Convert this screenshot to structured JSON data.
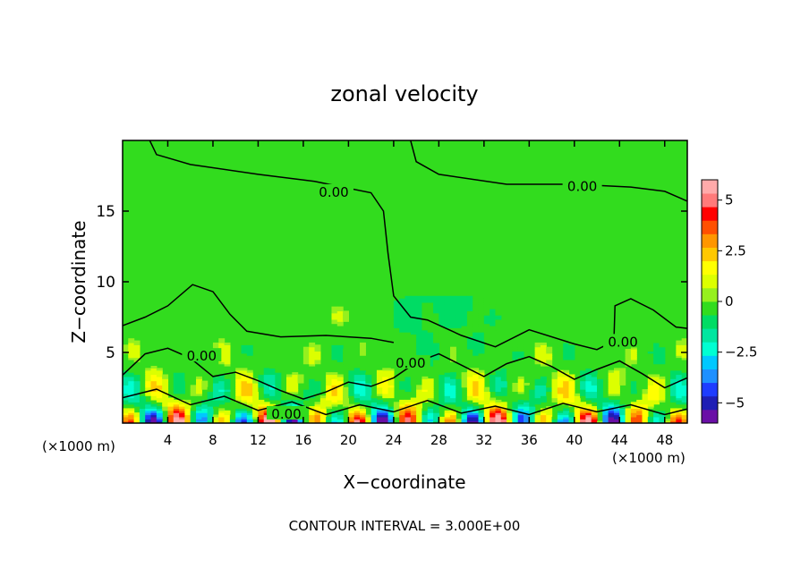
{
  "chart_data": {
    "type": "heatmap",
    "title": "zonal velocity",
    "xlabel": "X−coordinate",
    "ylabel": "Z−coordinate",
    "x_unit_left": "(×1000 m)",
    "x_unit_right": "(×1000 m)",
    "footer": "CONTOUR INTERVAL = 3.000E+00",
    "xlim": [
      0,
      50
    ],
    "ylim": [
      0,
      20
    ],
    "x_ticks": [
      4,
      8,
      12,
      16,
      20,
      24,
      28,
      32,
      36,
      40,
      44,
      48
    ],
    "x_tick_labels": [
      "4",
      "8",
      "12",
      "16",
      "20",
      "24",
      "28",
      "32",
      "36",
      "40",
      "44",
      "48"
    ],
    "y_ticks": [
      5,
      10,
      15
    ],
    "y_tick_labels": [
      "5",
      "10",
      "15"
    ],
    "colorbar": {
      "range": [
        -6,
        6
      ],
      "ticks": [
        5,
        2.5,
        0,
        -2.5,
        -5
      ],
      "tick_labels": [
        "5",
        "2.5",
        "0",
        "−2.5",
        "−5"
      ],
      "colors": [
        "#6a0fa6",
        "#1e1eb4",
        "#1e3cff",
        "#1e90ff",
        "#00c8ff",
        "#00ffd2",
        "#00e6a0",
        "#00dc64",
        "#32dc1e",
        "#96f01e",
        "#dcff00",
        "#ffff00",
        "#ffc800",
        "#ff9600",
        "#ff5000",
        "#ff0000",
        "#ff7a7a",
        "#ffaaaa"
      ]
    },
    "contour_labels": [
      "0.00",
      "0.00",
      "0.00",
      "0.00",
      "0.00",
      "0.00"
    ]
  }
}
